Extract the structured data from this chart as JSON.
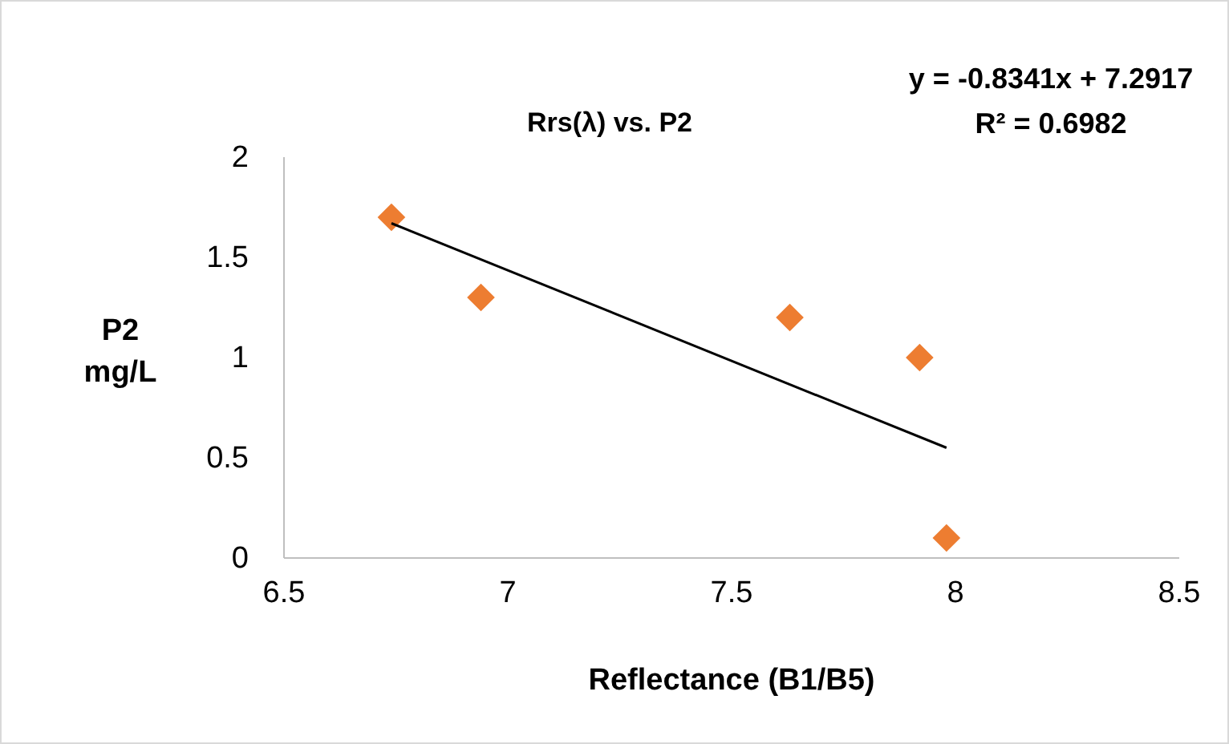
{
  "chart_data": {
    "type": "scatter",
    "title": "Rrs(λ) vs. P2",
    "xlabel": "Reflectance (B1/B5)",
    "ylabel": "P2 mg/L",
    "annotations": [
      "y = -0.8341x + 7.2917",
      "R² = 0.6982"
    ],
    "x": [
      6.74,
      6.94,
      7.63,
      7.92,
      7.98
    ],
    "series": [
      {
        "color": "#ed7d31",
        "values": [
          1.7,
          1.3,
          1.2,
          1.0,
          0.1
        ],
        "marker": "diamond"
      },
      {
        "type": "line",
        "color": "#000000",
        "x": [
          6.74,
          7.98
        ],
        "values": [
          1.67,
          0.55
        ],
        "marker": "none"
      }
    ],
    "xlim": [
      6.5,
      8.5
    ],
    "xticks": [
      6.5,
      7,
      7.5,
      8,
      8.5
    ],
    "ylim": [
      0,
      2
    ],
    "yticks": [
      0,
      0.5,
      1,
      1.5,
      2
    ],
    "grid": false
  }
}
